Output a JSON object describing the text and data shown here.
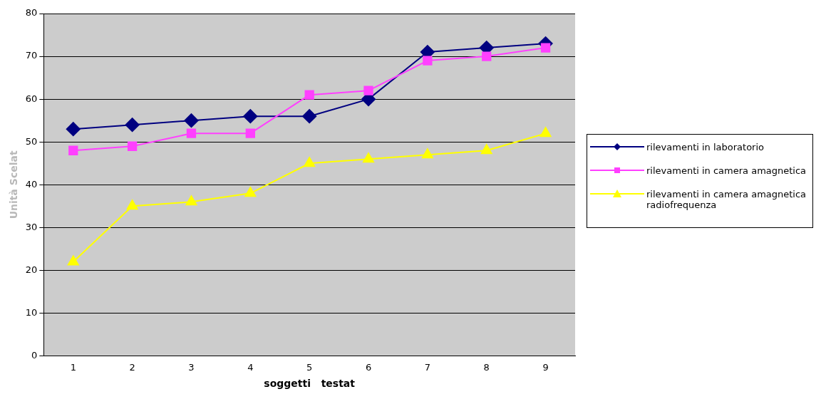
{
  "chart_data": {
    "type": "line",
    "xlabel": "soggetti   testat",
    "ylabel": "Unità Scelat",
    "categories": [
      "1",
      "2",
      "3",
      "4",
      "5",
      "6",
      "7",
      "8",
      "9"
    ],
    "series": [
      {
        "name": "rilevamenti in laboratorio",
        "color": "#000080",
        "marker": "diamond",
        "values": [
          53,
          54,
          55,
          56,
          56,
          60,
          71,
          72,
          73
        ]
      },
      {
        "name": "rilevamenti in camera amagnetica",
        "color": "#ff40ff",
        "marker": "square",
        "values": [
          48,
          49,
          52,
          52,
          61,
          62,
          69,
          70,
          72
        ]
      },
      {
        "name": "rilevamenti in camera amagnetica radiofrequenza",
        "color": "#ffff00",
        "marker": "triangle",
        "values": [
          22,
          35,
          36,
          38,
          45,
          46,
          47,
          48,
          52
        ]
      }
    ],
    "ylim": [
      0,
      80
    ],
    "yticks": [
      0,
      10,
      20,
      30,
      40,
      50,
      60,
      70,
      80
    ],
    "grid": "y",
    "legend": "right"
  }
}
